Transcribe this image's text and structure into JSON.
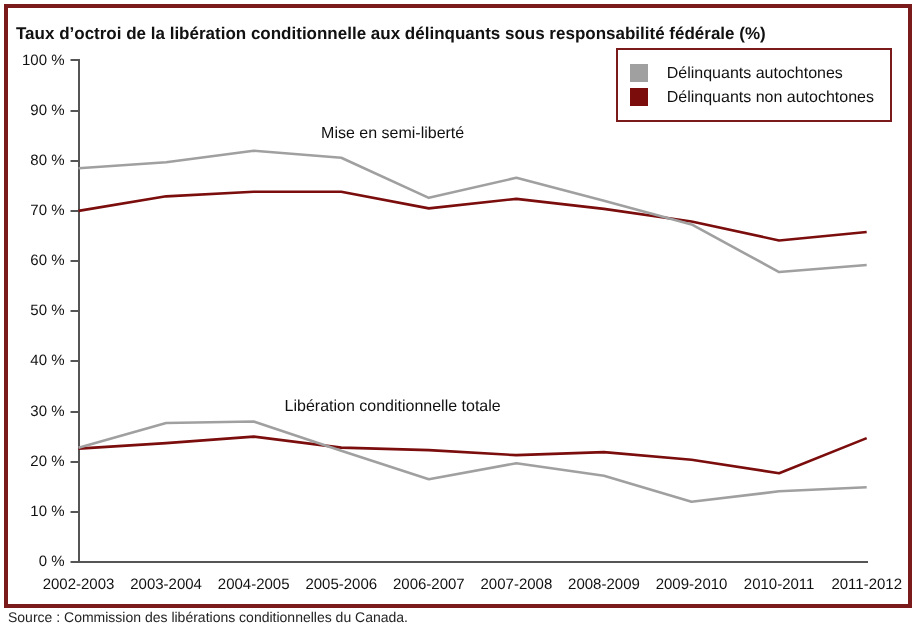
{
  "chart_data": {
    "type": "line",
    "title": "Taux d’octroi de la libération conditionnelle aux délinquants sous responsabilité fédérale (%)",
    "categories": [
      "2002-2003",
      "2003-2004",
      "2004-2005",
      "2005-2006",
      "2006-2007",
      "2007-2008",
      "2008-2009",
      "2009-2010",
      "2010-2011",
      "2011-2012"
    ],
    "series": [
      {
        "name": "Délinquants autochtones",
        "color": "#a0a0a0",
        "values": [
          78.5,
          79.7,
          82,
          80.6,
          72.6,
          76.6,
          72,
          67.3,
          57.8,
          59.2
        ]
      },
      {
        "name": "Délinquants non autochtones",
        "color": "#7b0d0d",
        "values": [
          70,
          72.9,
          73.8,
          73.8,
          70.5,
          72.4,
          70.4,
          67.9,
          64.1,
          65.8
        ]
      },
      {
        "color": "#a0a0a0",
        "values": [
          22.8,
          27.7,
          28,
          22.2,
          16.5,
          19.7,
          17.2,
          12,
          14.1,
          14.9
        ]
      },
      {
        "color": "#7b0d0d",
        "values": [
          22.6,
          23.7,
          25,
          22.8,
          22.3,
          21.3,
          21.9,
          20.4,
          17.7,
          24.7
        ]
      }
    ],
    "ylim": [
      0,
      100
    ],
    "yticks": [
      {
        "value": 0,
        "label": "0 %"
      },
      {
        "value": 10,
        "label": "10 %"
      },
      {
        "value": 20,
        "label": "20 %"
      },
      {
        "value": 30,
        "label": "30 %"
      },
      {
        "value": 40,
        "label": "40 %"
      },
      {
        "value": 50,
        "label": "50 %"
      },
      {
        "value": 60,
        "label": "60 %"
      },
      {
        "value": 70,
        "label": "70 %"
      },
      {
        "value": 80,
        "label": "80 %"
      },
      {
        "value": 90,
        "label": "90 %"
      },
      {
        "value": 100,
        "label": "100 %"
      }
    ],
    "annotations": [
      "Mise en semi-liberté",
      "Libération conditionnelle totale",
      "Source : Commission des libérations conditionnelles du Canada."
    ],
    "legend": "top right",
    "grid": false,
    "marker": "none",
    "line_style": "solid"
  }
}
